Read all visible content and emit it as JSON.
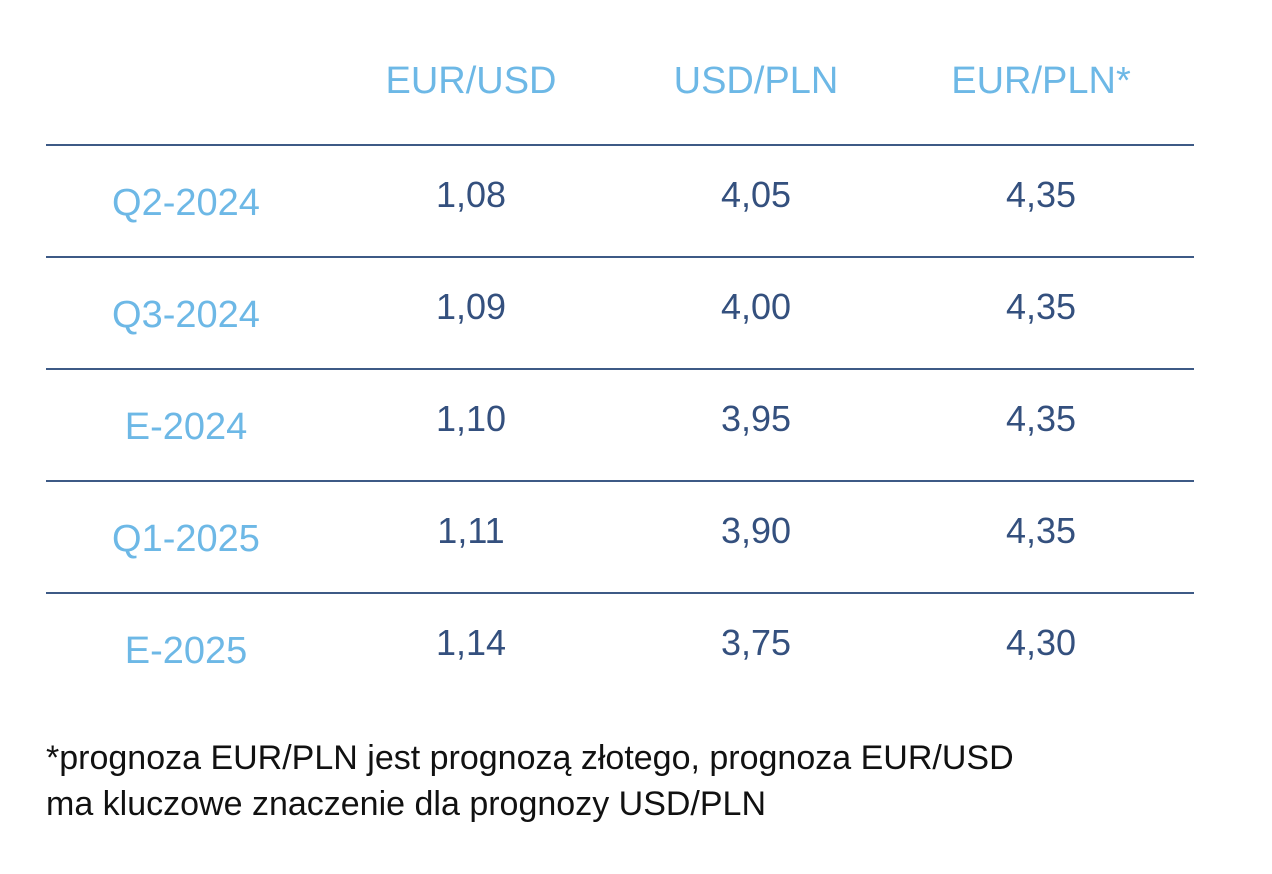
{
  "table": {
    "columns": [
      "EUR/USD",
      "USD/PLN",
      "EUR/PLN*"
    ],
    "rows": [
      {
        "label": "Q2-2024",
        "values": [
          "1,08",
          "4,05",
          "4,35"
        ]
      },
      {
        "label": "Q3-2024",
        "values": [
          "1,09",
          "4,00",
          "4,35"
        ]
      },
      {
        "label": "E-2024",
        "values": [
          "1,10",
          "3,95",
          "4,35"
        ]
      },
      {
        "label": "Q1-2025",
        "values": [
          "1,11",
          "3,90",
          "4,35"
        ]
      },
      {
        "label": "E-2025",
        "values": [
          "1,14",
          "3,75",
          "4,30"
        ]
      }
    ]
  },
  "footnote": {
    "line1": "*prognoza EUR/PLN jest prognozą złotego, prognoza EUR/USD",
    "line2": "ma kluczowe znaczenie dla prognozy USD/PLN"
  },
  "colors": {
    "header_text": "#6db8e6",
    "value_text": "#34507e",
    "rule": "#3d5a86"
  }
}
